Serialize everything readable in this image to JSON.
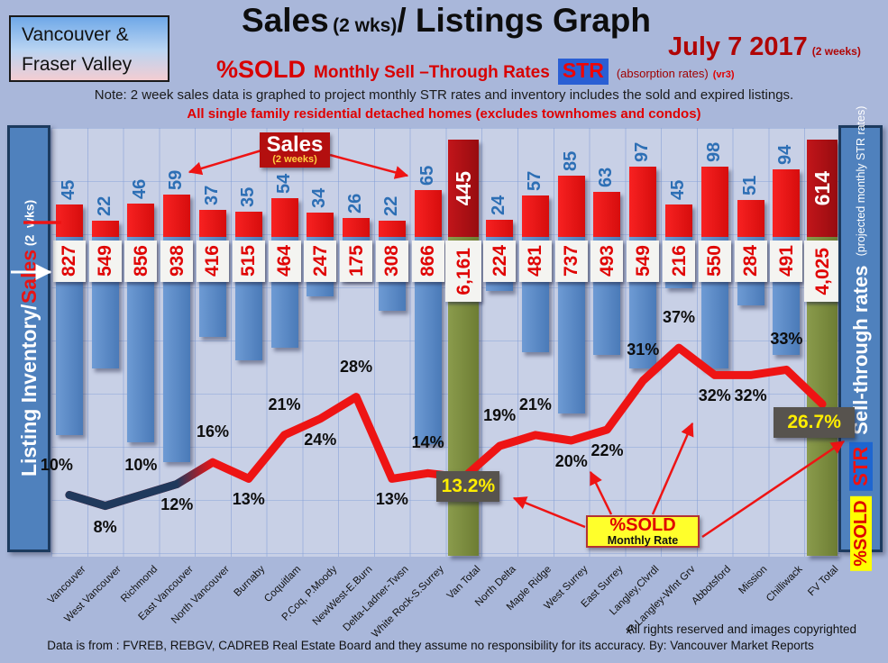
{
  "header": {
    "region_line1": "Vancouver &",
    "region_line2": "Fraser Valley",
    "title_main": "Sales",
    "title_paren": "(2 wks)",
    "title_rest": "/ Listings Graph",
    "date": "July 7 2017",
    "date_note": "(2 weeks)",
    "subtitle_pct": "%SOLD",
    "subtitle_rates": "Monthly Sell –Through Rates",
    "subtitle_str": "STR",
    "subtitle_abs": "(absorption rates)",
    "subtitle_vr": "(vr3)",
    "note": "Note: 2 week sales data is graphed to project monthly STR rates and inventory includes the sold and expired listings.",
    "scope": "All single family residential detached homes (excludes townhomes and condos)"
  },
  "left_axis": {
    "part1": "Listing Inventory",
    "sep": " / ",
    "part2": "Sales",
    "part3": " (2  wks)"
  },
  "right_axis": {
    "chip_yellow": "%SOLD",
    "chip_blue": "STR",
    "label": "Sell-through rates",
    "sub": " (projected monthly STR rates)"
  },
  "callouts": {
    "sales_box_line1": "Sales",
    "sales_box_line2": "(2 weeks)",
    "pct_sold_line1": "%SOLD",
    "pct_sold_line2": "Monthly Rate"
  },
  "footer": {
    "rights": "All rights reserved and  images copyrighted",
    "source": "Data is from : FVREB, REBGV, CADREB Real Estate Board and they assume no responsibility for its accuracy. By: Vancouver Market Reports"
  },
  "chart_data": {
    "type": "bar+line combo (sales bars up, inventory bars down, sell-through-rate line)",
    "title": "Sales (2 wks)/ Listings Graph",
    "date": "July 7 2017",
    "ylabel_left": "Listing Inventory / Sales (2 wks)",
    "ylabel_right": "Sell-through rates (projected monthly STR rates)",
    "categories": [
      "Vancouver",
      "West Vancouver",
      "Richmond",
      "East Vancouver",
      "North Vancouver",
      "Burnaby",
      "Coquitlam",
      "P.Coq, P.Moody",
      "NewWest-E.Burn",
      "Delta-Ladner-Twsn",
      "White Rock-S.Surrey",
      "Van Total",
      "North Delta",
      "Maple Ridge",
      "West Surrey",
      "East Surrey",
      "Langley,Clvrdl",
      "Ft Langley-Wlnt Grv",
      "Abbotsford",
      "Mission",
      "Chilliwack",
      "FV Total"
    ],
    "series": [
      {
        "name": "Sales (2 weeks)",
        "values": [
          45,
          22,
          46,
          59,
          37,
          35,
          54,
          34,
          26,
          22,
          65,
          445,
          24,
          57,
          85,
          63,
          97,
          45,
          98,
          51,
          94,
          614
        ]
      },
      {
        "name": "Listing Inventory",
        "values": [
          827,
          549,
          856,
          938,
          416,
          515,
          464,
          247,
          175,
          308,
          866,
          6161,
          224,
          481,
          737,
          493,
          549,
          216,
          550,
          284,
          491,
          4025
        ]
      },
      {
        "name": "%SOLD Monthly Sell-Through Rate",
        "values": [
          10,
          8,
          10,
          12,
          16,
          13,
          21,
          24,
          28,
          13,
          14,
          13.2,
          19,
          21,
          20,
          22,
          31,
          37,
          32,
          32,
          33,
          26.7
        ]
      }
    ],
    "inventory_display": [
      "827",
      "549",
      "856",
      "938",
      "416",
      "515",
      "464",
      "247",
      "175",
      "308",
      "866",
      "6,161",
      "224",
      "481",
      "737",
      "493",
      "549",
      "216",
      "550",
      "284",
      "491",
      "4,025"
    ],
    "pct_labels": [
      "10%",
      "8%",
      "10%",
      "12%",
      "16%",
      "13%",
      "21%",
      "24%",
      "28%",
      "13%",
      "14%",
      "13.2%",
      "19%",
      "21%",
      "20%",
      "22%",
      "31%",
      "37%",
      "32%",
      "32%",
      "33%",
      "26.7%"
    ],
    "pct_label_pos": [
      "above",
      "below",
      "above",
      "below",
      "above",
      "below",
      "above",
      "below",
      "above",
      "below",
      "above",
      "box",
      "above",
      "above",
      "below",
      "below",
      "above",
      "above",
      "below",
      "below",
      "above",
      "box"
    ],
    "totals_index": [
      11,
      21
    ],
    "legend_position": "none",
    "grid": true,
    "colors": {
      "sales_bar": "#ee1111",
      "total_sales_bar": "#a50d11",
      "inventory_bar": "#5b8bc9",
      "total_inventory_bar": "#7a8c3e",
      "line_red": "#ee1414",
      "line_navy": "#20395c",
      "highlight_box_bg": "#57534e",
      "highlight_box_text": "#ffee00",
      "plot_bg": "#c8d0e6",
      "page_bg": "#a9b7da"
    }
  }
}
